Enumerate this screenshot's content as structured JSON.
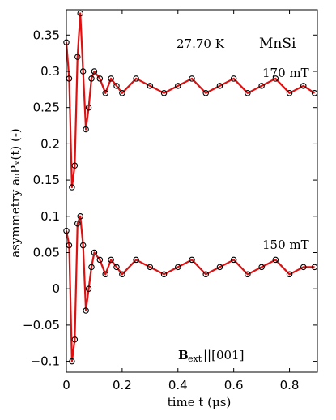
{
  "chart_data": {
    "type": "scatter",
    "title": "",
    "xlabel": "time t (μs)",
    "ylabel": "asymmetry a₀Pₓ(t) (-)",
    "xlim": [
      0,
      0.9
    ],
    "ylim": [
      -0.115,
      0.385
    ],
    "x_ticks": [
      0,
      0.2,
      0.4,
      0.6,
      0.8
    ],
    "x_tick_labels": [
      "0",
      "0.2",
      "0.4",
      "0.6",
      "0.8"
    ],
    "y_ticks": [
      -0.1,
      -0.05,
      0,
      0.05,
      0.1,
      0.15,
      0.2,
      0.25,
      0.3,
      0.35
    ],
    "y_tick_labels": [
      "−0.1",
      "−0.05",
      "0",
      "0.05",
      "0.1",
      "0.15",
      "0.2",
      "0.25",
      "0.3",
      "0.35"
    ],
    "grid": false,
    "legend": "none",
    "annotations": {
      "temperature": "27.70 K",
      "sample": "MnSi",
      "field_high": "170 mT",
      "field_low": "150 mT",
      "orientation_main": "B",
      "orientation_sub": "ext",
      "orientation_tail": "||[001]"
    },
    "colors": {
      "data": "#000000",
      "fit": "#dd1111"
    },
    "series": [
      {
        "label": "170 mT",
        "offset": 0.275,
        "x": [
          0,
          0.01,
          0.02,
          0.03,
          0.04,
          0.05,
          0.06,
          0.07,
          0.08,
          0.09,
          0.1,
          0.12,
          0.14,
          0.16,
          0.18,
          0.2,
          0.25,
          0.3,
          0.35,
          0.4,
          0.45,
          0.5,
          0.55,
          0.6,
          0.65,
          0.7,
          0.75,
          0.8,
          0.85,
          0.89
        ],
        "y": [
          0.34,
          0.29,
          0.14,
          0.17,
          0.32,
          0.38,
          0.3,
          0.22,
          0.25,
          0.29,
          0.3,
          0.29,
          0.27,
          0.29,
          0.28,
          0.27,
          0.29,
          0.28,
          0.27,
          0.28,
          0.29,
          0.27,
          0.28,
          0.29,
          0.27,
          0.28,
          0.29,
          0.27,
          0.28,
          0.27
        ]
      },
      {
        "label": "150 mT",
        "offset": 0.03,
        "x": [
          0,
          0.01,
          0.02,
          0.03,
          0.04,
          0.05,
          0.06,
          0.07,
          0.08,
          0.09,
          0.1,
          0.12,
          0.14,
          0.16,
          0.18,
          0.2,
          0.25,
          0.3,
          0.35,
          0.4,
          0.45,
          0.5,
          0.55,
          0.6,
          0.65,
          0.7,
          0.75,
          0.8,
          0.85,
          0.89
        ],
        "y": [
          0.08,
          0.06,
          -0.1,
          -0.07,
          0.09,
          0.1,
          0.06,
          -0.03,
          0.0,
          0.03,
          0.05,
          0.04,
          0.02,
          0.04,
          0.03,
          0.02,
          0.04,
          0.03,
          0.02,
          0.03,
          0.04,
          0.02,
          0.03,
          0.04,
          0.02,
          0.03,
          0.04,
          0.02,
          0.03,
          0.03
        ]
      }
    ]
  }
}
